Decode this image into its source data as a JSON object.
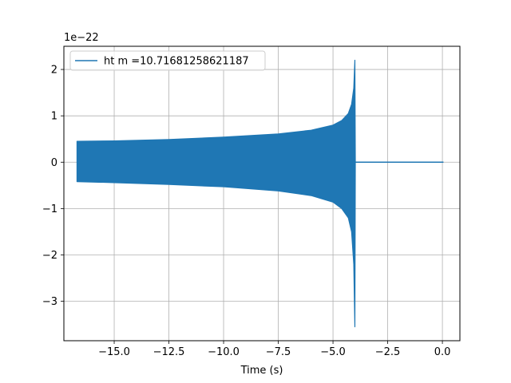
{
  "chart_data": {
    "type": "line",
    "title": "",
    "xlabel": "Time (s)",
    "ylabel": "",
    "y_offset_label": "1e−22",
    "xlim": [
      -17.3,
      0.8
    ],
    "ylim": [
      -3.85,
      2.5
    ],
    "x_ticks": [
      -15.0,
      -12.5,
      -10.0,
      -7.5,
      -5.0,
      -2.5,
      0.0
    ],
    "x_tick_labels": [
      "−15.0",
      "−12.5",
      "−10.0",
      "−7.5",
      "−5.0",
      "−2.5",
      "0.0"
    ],
    "y_ticks": [
      -3,
      -2,
      -1,
      0,
      1,
      2
    ],
    "y_tick_labels": [
      "−3",
      "−2",
      "−1",
      "0",
      "1",
      "2"
    ],
    "grid": true,
    "legend_position": "top-left",
    "series": [
      {
        "name": "ht m =10.71681258621187",
        "color": "#1f77b4",
        "envelope": {
          "x": [
            -16.7,
            -15.0,
            -12.5,
            -10.0,
            -7.5,
            -6.0,
            -5.0,
            -4.6,
            -4.3,
            -4.15,
            -4.05,
            -4.0,
            -3.98
          ],
          "upper": [
            0.45,
            0.46,
            0.49,
            0.54,
            0.61,
            0.69,
            0.8,
            0.9,
            1.05,
            1.25,
            1.6,
            2.2,
            0.0
          ],
          "lower": [
            -0.42,
            -0.44,
            -0.48,
            -0.53,
            -0.62,
            -0.72,
            -0.86,
            -1.0,
            -1.2,
            -1.5,
            -2.2,
            -3.55,
            0.0
          ]
        },
        "ringdown": {
          "x": [
            -3.98,
            0.05
          ],
          "y": [
            0.0,
            0.0
          ]
        }
      }
    ]
  }
}
